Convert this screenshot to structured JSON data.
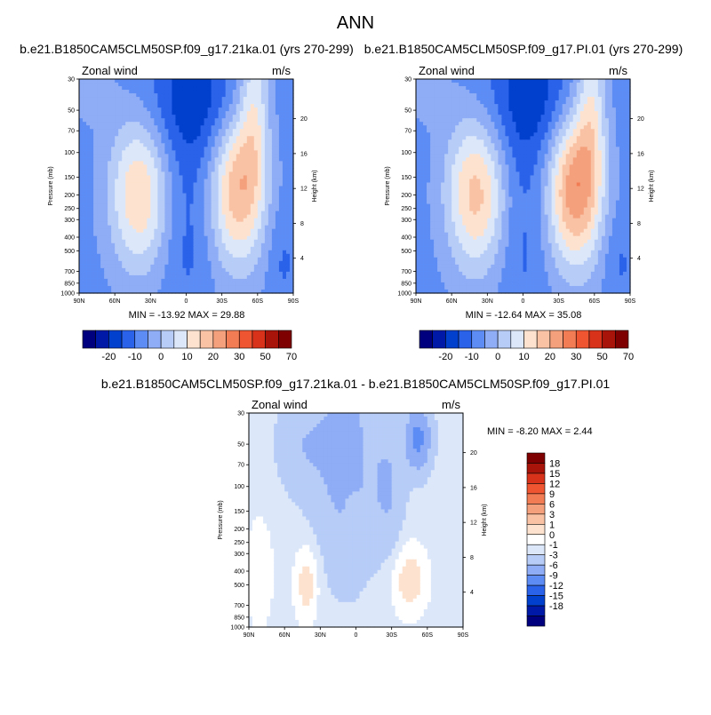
{
  "page_title": "ANN",
  "chart_data": [
    {
      "type": "contour",
      "id": "ka",
      "title": "b.e21.B1850CAM5CLM50SP.f09_g17.21ka.01 (yrs 270-299)",
      "field_label": "Zonal wind",
      "units_label": "m/s",
      "ylabel": "Pressure (mb)",
      "ylabel_right": "Height (km)",
      "x_ticks": [
        "90N",
        "60N",
        "30N",
        "0",
        "30S",
        "60S",
        "90S"
      ],
      "y_ticks": [
        "30",
        "50",
        "70",
        "100",
        "150",
        "200",
        "250",
        "300",
        "400",
        "500",
        "700",
        "850",
        "1000"
      ],
      "y_ticks_right": [
        "20",
        "16",
        "12",
        "8",
        "4"
      ],
      "stats_text": "MIN = -13.92  MAX =  29.88",
      "min": -13.92,
      "max": 29.88,
      "colorbar_labels": [
        "-20",
        "-10",
        "0",
        "10",
        "20",
        "30",
        "50",
        "70"
      ],
      "jets": {
        "nh_peak": 22,
        "sh_peak": 26,
        "strat_easterly": -12
      }
    },
    {
      "type": "contour",
      "id": "pi",
      "title": "b.e21.B1850CAM5CLM50SP.f09_g17.PI.01 (yrs 270-299)",
      "field_label": "Zonal wind",
      "units_label": "m/s",
      "ylabel": "Pressure (mb)",
      "ylabel_right": "Height (km)",
      "x_ticks": [
        "90N",
        "60N",
        "30N",
        "0",
        "30S",
        "60S",
        "90S"
      ],
      "y_ticks": [
        "30",
        "50",
        "70",
        "100",
        "150",
        "200",
        "250",
        "300",
        "400",
        "500",
        "700",
        "850",
        "1000"
      ],
      "y_ticks_right": [
        "20",
        "16",
        "12",
        "8",
        "4"
      ],
      "stats_text": "MIN = -12.64  MAX =  35.08",
      "min": -12.64,
      "max": 35.08,
      "colorbar_labels": [
        "-20",
        "-10",
        "0",
        "10",
        "20",
        "30",
        "50",
        "70"
      ],
      "jets": {
        "nh_peak": 24,
        "sh_peak": 31,
        "strat_easterly": -12
      }
    },
    {
      "type": "contour",
      "id": "diff",
      "title": "b.e21.B1850CAM5CLM50SP.f09_g17.21ka.01 - b.e21.B1850CAM5CLM50SP.f09_g17.PI.01",
      "field_label": "Zonal wind",
      "units_label": "m/s",
      "ylabel": "Pressure (mb)",
      "ylabel_right": "Height (km)",
      "x_ticks": [
        "90N",
        "60N",
        "30N",
        "0",
        "30S",
        "60S",
        "90S"
      ],
      "y_ticks": [
        "30",
        "50",
        "70",
        "100",
        "150",
        "200",
        "250",
        "300",
        "400",
        "500",
        "700",
        "850",
        "1000"
      ],
      "y_ticks_right": [
        "20",
        "16",
        "12",
        "8",
        "4"
      ],
      "stats_text": "MIN =  -8.20  MAX =   2.44",
      "min": -8.2,
      "max": 2.44,
      "colorbar_labels": [
        "18",
        "15",
        "12",
        "9",
        "6",
        "3",
        "1",
        "0",
        "-1",
        "-3",
        "-6",
        "-9",
        "-12",
        "-15",
        "-18"
      ]
    }
  ],
  "colors": {
    "main_scale": [
      "#00007f",
      "#0019a6",
      "#0040cc",
      "#2a62ea",
      "#5d8cf5",
      "#8eadf6",
      "#b7cdf8",
      "#dce8fa",
      "#fde3cf",
      "#f9c2a4",
      "#f5a07c",
      "#f27d55",
      "#ee5530",
      "#d8321b",
      "#a81409",
      "#7f0000"
    ],
    "diff_scale": [
      "#00007f",
      "#0019a6",
      "#0040cc",
      "#2a62ea",
      "#5d8cf5",
      "#8eadf6",
      "#b7cdf8",
      "#dce8fa",
      "#ffffff",
      "#fde3cf",
      "#f9c2a4",
      "#f5a07c",
      "#f27d55",
      "#ee5530",
      "#d8321b",
      "#a81409",
      "#7f0000"
    ]
  }
}
